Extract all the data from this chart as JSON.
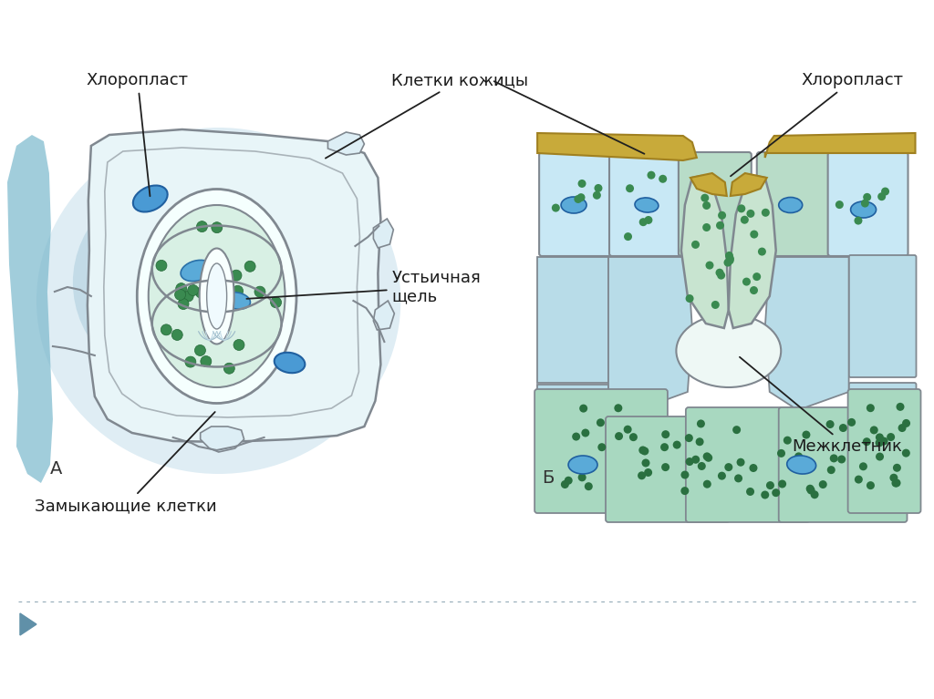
{
  "bg_color": "#ffffff",
  "fig_width": 10.24,
  "fig_height": 7.67,
  "dpi": 100,
  "label_A": "А",
  "label_B": "Б",
  "labels": {
    "chloroplast_A": "Хлоропласт",
    "skin_cells": "Клетки кожицы",
    "stomatal_slit": "Устьичная\nщель",
    "guard_cells": "Замыкающие клетки",
    "chloroplast_B": "Хлоропласт",
    "intercellular": "Межклетник"
  },
  "colors": {
    "cell_light_blue": "#b8dce8",
    "cell_mid_blue": "#7ab8cc",
    "cell_outline": "#7090a0",
    "guard_green": "#c8e8d8",
    "guard_green_dark": "#90c8a8",
    "chloroplast_dot": "#3a8a50",
    "chloroplast_dot2": "#2a6a38",
    "blue_oval": "#4a9ad4",
    "blue_oval_dark": "#2a6a9a",
    "slit_fill": "#f8fffe",
    "cuticle_fill": "#c8aa3a",
    "cuticle_edge": "#a08020",
    "cell_green_fill": "#a8d8b8",
    "wall_color": "#808890",
    "bg_blue_A": "#c0e0ed",
    "bg_blue_shadow": "#90c4d8",
    "annotation_line": "#202020",
    "text_color": "#1a1a1a",
    "dotted_color": "#9ab0bc",
    "arrow_fill": "#6090a8"
  }
}
